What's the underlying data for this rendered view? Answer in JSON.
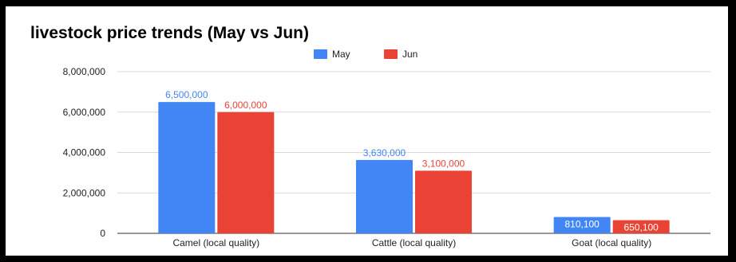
{
  "chart_data": {
    "type": "bar",
    "title": "livestock price trends (May vs Jun)",
    "categories": [
      "Camel (local quality)",
      "Cattle (local quality)",
      "Goat (local quality)"
    ],
    "series": [
      {
        "name": "May",
        "values": [
          6500000,
          3630000,
          810100
        ],
        "labels": [
          "6,500,000",
          "3,630,000",
          "810,100"
        ],
        "color": "#4285f4"
      },
      {
        "name": "Jun",
        "values": [
          6000000,
          3100000,
          650100
        ],
        "labels": [
          "6,000,000",
          "3,100,000",
          "650,100"
        ],
        "color": "#ea4335"
      }
    ],
    "ylim": [
      0,
      8000000
    ],
    "yticks": [
      0,
      2000000,
      4000000,
      6000000,
      8000000
    ],
    "ytick_labels": [
      "0",
      "2,000,000",
      "4,000,000",
      "6,000,000",
      "8,000,000"
    ],
    "grid": true,
    "legend": "top-center",
    "xlabel": "",
    "ylabel": ""
  }
}
